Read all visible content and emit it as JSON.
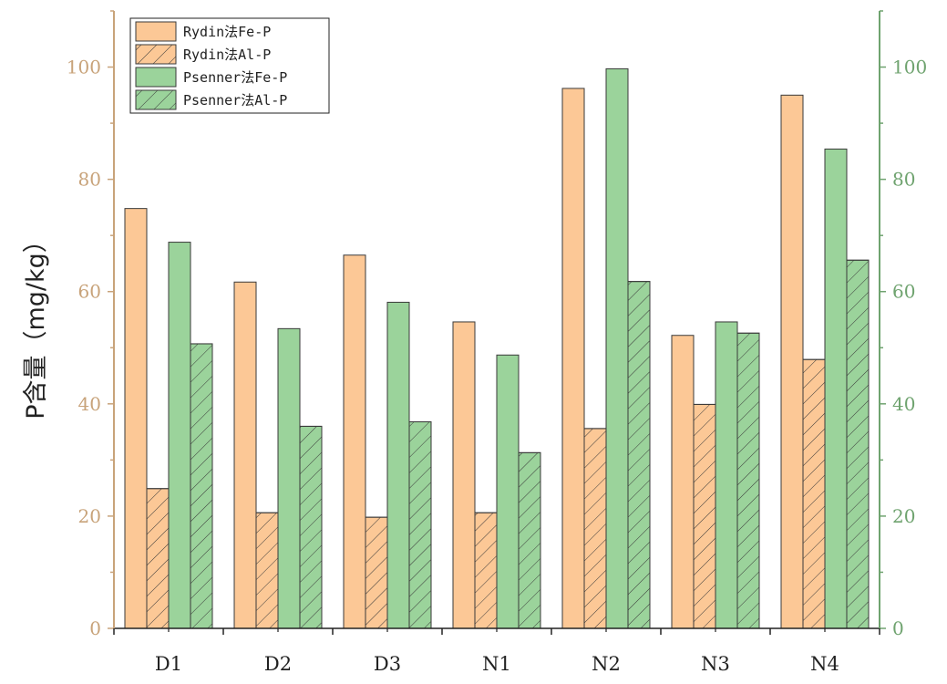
{
  "chart_data": {
    "type": "bar",
    "title": "",
    "xlabel": "",
    "ylabel": "P含量（mg/kg）",
    "ylim": [
      0,
      110
    ],
    "left_axis_color": "#c8a37a",
    "right_axis_color": "#6fa36f",
    "categories": [
      "D1",
      "D2",
      "D3",
      "N1",
      "N2",
      "N3",
      "N4"
    ],
    "y_ticks": [
      0,
      20,
      40,
      60,
      80,
      100
    ],
    "series": [
      {
        "name": "Rydin法Fe-P",
        "fill": "#fcc896",
        "hatched": false,
        "values": [
          74.8,
          61.7,
          66.5,
          54.6,
          96.2,
          52.2,
          95.0
        ]
      },
      {
        "name": "Rydin法Al-P",
        "fill": "#fcc896",
        "hatched": true,
        "values": [
          24.9,
          20.6,
          19.8,
          20.6,
          35.6,
          39.9,
          47.9
        ]
      },
      {
        "name": "Psenner法Fe-P",
        "fill": "#9bd39b",
        "hatched": false,
        "values": [
          68.8,
          53.4,
          58.1,
          48.7,
          99.7,
          54.6,
          85.4
        ]
      },
      {
        "name": "Psenner法Al-P",
        "fill": "#9bd39b",
        "hatched": true,
        "values": [
          50.7,
          36.0,
          36.8,
          31.3,
          61.8,
          52.6,
          65.6
        ]
      }
    ],
    "legend_position": "top-left"
  }
}
